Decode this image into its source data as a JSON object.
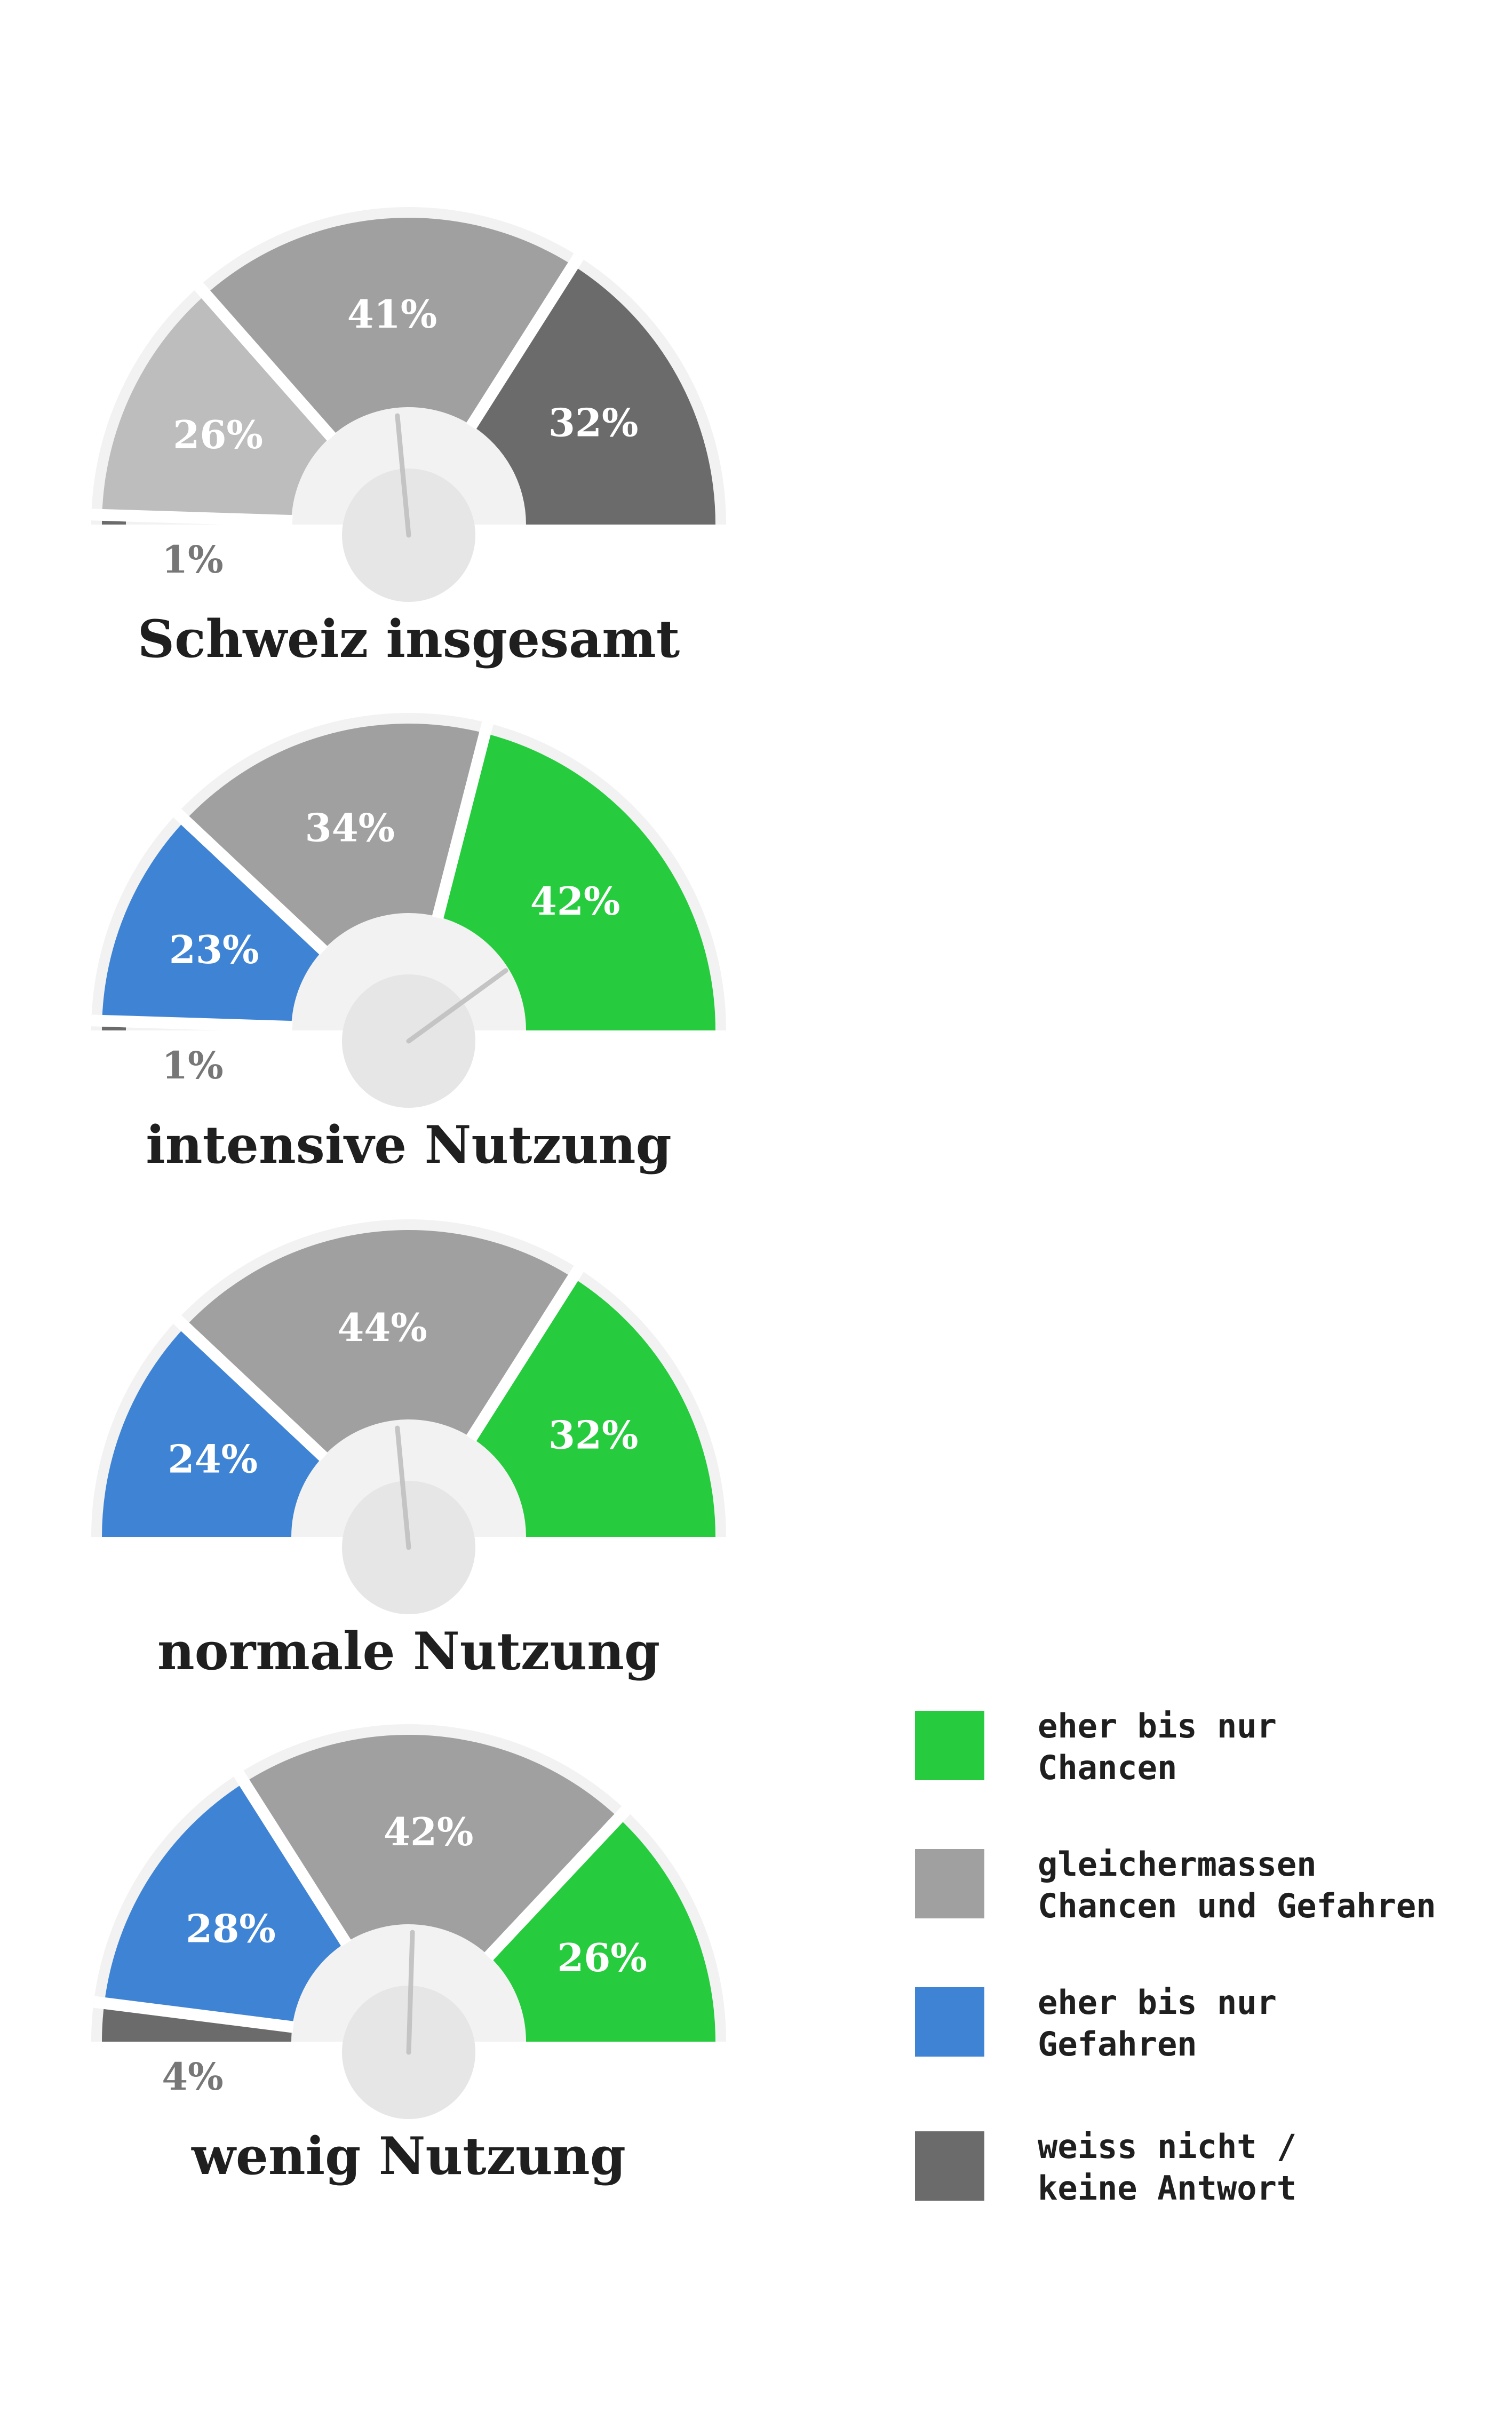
{
  "legend": [
    {
      "key": "chancen",
      "line1": "eher bis nur",
      "line2": "Chancen",
      "color": "#26cc3d"
    },
    {
      "key": "beides",
      "line1": "gleichermassen",
      "line2": "Chancen und Gefahren",
      "color": "#a0a0a0"
    },
    {
      "key": "gefahren",
      "line1": "eher bis nur",
      "line2": "Gefahren",
      "color": "#3f84d4"
    },
    {
      "key": "weissnicht",
      "line1": "weiss nicht /",
      "line2": "keine Antwort",
      "color": "#6b6b6b"
    }
  ],
  "chart_data": [
    {
      "type": "pie",
      "variant": "semicircle-gauge",
      "title": "Schweiz insgesamt",
      "segments": [
        {
          "value": 1,
          "label": "1%",
          "color": "#6b6b6b"
        },
        {
          "value": 26,
          "label": "26%",
          "color": "#bdbdbd"
        },
        {
          "value": 41,
          "label": "41%",
          "color": "#a0a0a0"
        },
        {
          "value": 32,
          "label": "32%",
          "color": "#6b6b6b"
        }
      ],
      "needle": 0.47
    },
    {
      "type": "pie",
      "variant": "semicircle-gauge",
      "title": "intensive Nutzung",
      "segments": [
        {
          "value": 1,
          "label": "1%",
          "color": "#6b6b6b"
        },
        {
          "value": 23,
          "label": "23%",
          "color": "#3f84d4"
        },
        {
          "value": 34,
          "label": "34%",
          "color": "#a0a0a0"
        },
        {
          "value": 42,
          "label": "42%",
          "color": "#26cc3d"
        }
      ],
      "needle": 0.8
    },
    {
      "type": "pie",
      "variant": "semicircle-gauge",
      "title": "normale Nutzung",
      "segments": [
        {
          "value": 24,
          "label": "24%",
          "color": "#3f84d4"
        },
        {
          "value": 44,
          "label": "44%",
          "color": "#a0a0a0"
        },
        {
          "value": 32,
          "label": "32%",
          "color": "#26cc3d"
        }
      ],
      "needle": 0.47
    },
    {
      "type": "pie",
      "variant": "semicircle-gauge",
      "title": "wenig Nutzung",
      "segments": [
        {
          "value": 4,
          "label": "4%",
          "color": "#6b6b6b"
        },
        {
          "value": 28,
          "label": "28%",
          "color": "#3f84d4"
        },
        {
          "value": 42,
          "label": "42%",
          "color": "#a0a0a0"
        },
        {
          "value": 26,
          "label": "26%",
          "color": "#26cc3d"
        }
      ],
      "needle": 0.51
    }
  ]
}
